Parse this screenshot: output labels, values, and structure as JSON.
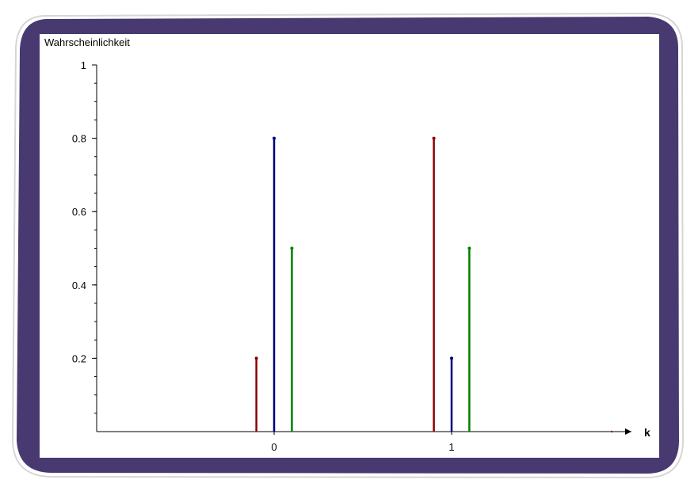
{
  "frame": {
    "border_color": "#483a70",
    "inner_color": "#ffffff",
    "outline_color": "#d6d6d6"
  },
  "chart_data": {
    "type": "stem",
    "ylabel": "Wahrscheinlichkeit",
    "xlabel": "k",
    "x_ticks": [
      0,
      1
    ],
    "x_tick_labels": [
      "0",
      "1"
    ],
    "y_ticks": [
      0.2,
      0.4,
      0.6,
      0.8,
      1
    ],
    "y_tick_labels": [
      "0.2",
      "0.4",
      "0.6",
      "0.8",
      "1"
    ],
    "ylim": [
      0,
      1
    ],
    "xlim": [
      -1,
      2
    ],
    "grid": false,
    "series": [
      {
        "color": "#8b0000",
        "offset": -0.1,
        "x": [
          0,
          1
        ],
        "values": [
          0.2,
          0.8
        ]
      },
      {
        "color": "#000080",
        "offset": 0.0,
        "x": [
          0,
          1
        ],
        "values": [
          0.8,
          0.2
        ]
      },
      {
        "color": "#008000",
        "offset": 0.1,
        "x": [
          0,
          1
        ],
        "values": [
          0.5,
          0.5
        ]
      }
    ]
  }
}
